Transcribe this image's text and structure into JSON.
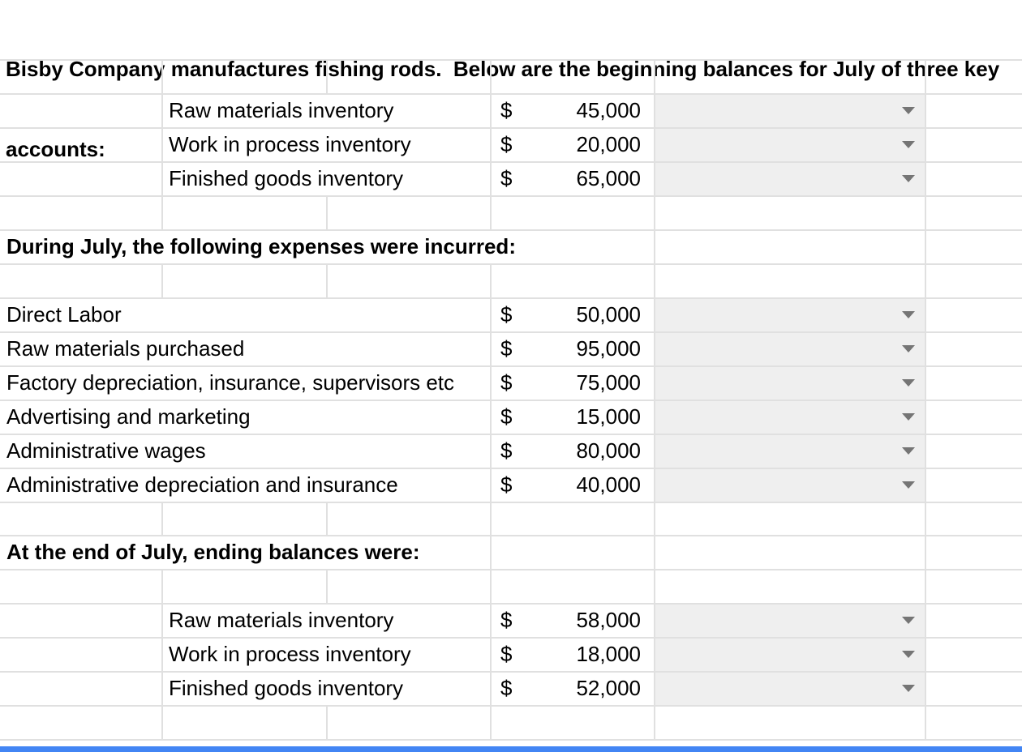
{
  "title": {
    "line1": "Bisby Company manufactures fishing rods.  Below are the beginning balances for July of three key",
    "line2": "accounts:"
  },
  "headings": {
    "expenses": "During July, the following expenses were incurred:",
    "ending": "At the end of July, ending balances were:"
  },
  "beginning_rows": [
    {
      "label": "Raw materials inventory",
      "currency": "$",
      "amount": "45,000",
      "dropdown_value": ""
    },
    {
      "label": "Work in process inventory",
      "currency": "$",
      "amount": "20,000",
      "dropdown_value": ""
    },
    {
      "label": "Finished goods inventory",
      "currency": "$",
      "amount": "65,000",
      "dropdown_value": ""
    }
  ],
  "expense_rows": [
    {
      "label": "Direct Labor",
      "currency": "$",
      "amount": "50,000",
      "dropdown_value": ""
    },
    {
      "label": "Raw materials purchased",
      "currency": "$",
      "amount": "95,000",
      "dropdown_value": ""
    },
    {
      "label": "Factory depreciation, insurance, supervisors etc",
      "currency": "$",
      "amount": "75,000",
      "dropdown_value": ""
    },
    {
      "label": "Advertising and marketing",
      "currency": "$",
      "amount": "15,000",
      "dropdown_value": ""
    },
    {
      "label": "Administrative wages",
      "currency": "$",
      "amount": "80,000",
      "dropdown_value": ""
    },
    {
      "label": "Administrative depreciation and insurance",
      "currency": "$",
      "amount": "40,000",
      "dropdown_value": ""
    }
  ],
  "ending_rows": [
    {
      "label": "Raw materials inventory",
      "currency": "$",
      "amount": "58,000",
      "dropdown_value": ""
    },
    {
      "label": "Work in process inventory",
      "currency": "$",
      "amount": "18,000",
      "dropdown_value": ""
    },
    {
      "label": "Finished goods inventory",
      "currency": "$",
      "amount": "52,000",
      "dropdown_value": ""
    }
  ],
  "icons": {
    "dropdown_arrow": "triangle-down-icon"
  },
  "colors": {
    "gridline": "#e0e0e0",
    "dropdown_cell_bg": "#efefef",
    "dropdown_arrow": "#757575",
    "text": "#000000",
    "background": "#ffffff",
    "bottom_bar": "#4285f4"
  }
}
